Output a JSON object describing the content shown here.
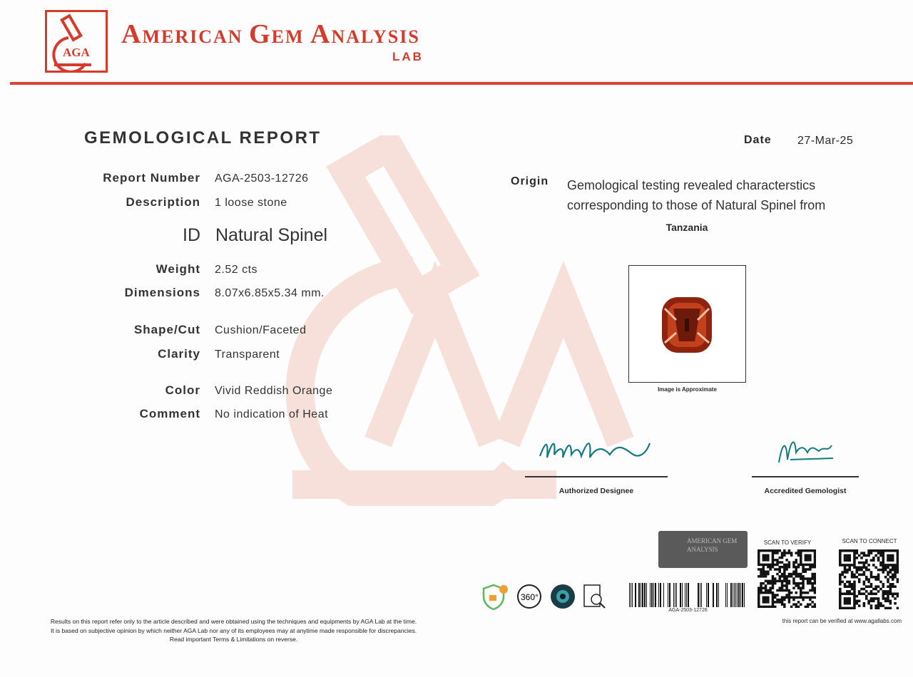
{
  "header": {
    "logo_text": "AGA",
    "brand": [
      "A",
      "MERICAN ",
      "G",
      "EM ",
      "A",
      "NALYSIS"
    ],
    "brand_sub": "LAB",
    "accent": "#d63a2a"
  },
  "report": {
    "title": "GEMOLOGICAL REPORT",
    "fields": [
      {
        "label": "Report Number",
        "value": "AGA-2503-12726"
      },
      {
        "label": "Description",
        "value": "1 loose stone"
      },
      {
        "label": "ID",
        "value": "Natural Spinel"
      },
      {
        "label": "Weight",
        "value": "2.52 cts"
      },
      {
        "label": "Dimensions",
        "value": "8.07x6.85x5.34 mm."
      },
      {
        "label": "Shape/Cut",
        "value": "Cushion/Faceted"
      },
      {
        "label": "Clarity",
        "value": "Transparent"
      },
      {
        "label": "Color",
        "value": "Vivid Reddish Orange"
      },
      {
        "label": "Comment",
        "value": "No indication of Heat"
      }
    ],
    "date_label": "Date",
    "date": "27-Mar-25",
    "origin_label": "Origin",
    "origin_text": "Gemological testing revealed characterstics corresponding to those of Natural Spinel from",
    "origin_country": "Tanzania",
    "image_caption": "Image is Approximate"
  },
  "signatures": [
    {
      "role": "Authorized Designee"
    },
    {
      "role": "Accredited Gemologist"
    }
  ],
  "security": {
    "seal_text": "AMERICAN GEM ANALYSIS",
    "barcode_text": "AGA-2503-12726",
    "scan_verify": "SCAN TO VERIFY",
    "scan_connect": "SCAN TO CONNECT",
    "verify_note": "this report can be verified at www.agallabs.com",
    "icons": [
      "shield-lock-icon",
      "360-view-icon",
      "camera-lens-icon",
      "document-search-icon"
    ]
  },
  "footer": {
    "lines": [
      "Results on this report refer only to the article described and were obtained using the techniques and equipments by AGA Lab at the time.",
      "It is based on subjective opinion by which neither AGA Lab nor any of its employees may at anytime made responsible for discrepancies.",
      "Read important Terms & Limitations on reverse."
    ]
  }
}
